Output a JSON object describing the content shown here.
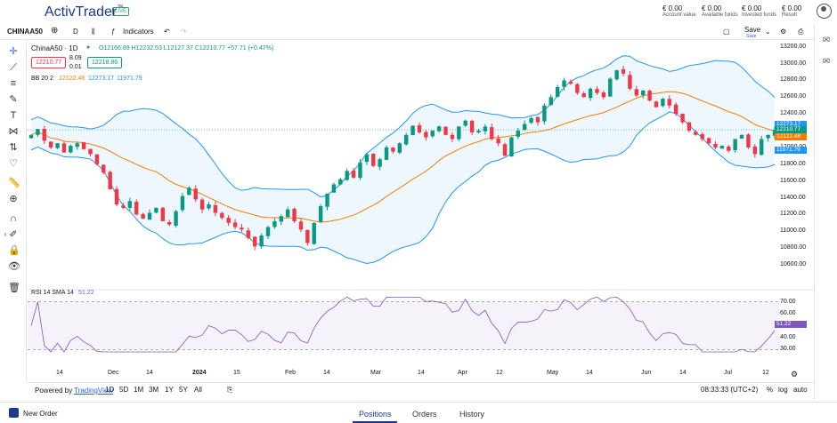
{
  "brand": {
    "name": "ActivTrader",
    "tm": "™",
    "badge": "LIVE"
  },
  "account": [
    {
      "value": "€ 0.00",
      "label": "Account value"
    },
    {
      "value": "€ 0.00",
      "label": "Available funds"
    },
    {
      "value": "€ 0.00",
      "label": "Invested funds"
    },
    {
      "value": "€ 0.00",
      "label": "Result"
    }
  ],
  "toolbar": {
    "symbol": "CHINAA50",
    "interval": "D",
    "indicators": "Indicators",
    "save": "Save",
    "save_sub": "Save"
  },
  "legend": {
    "title": "ChinaA50 · 1D",
    "ohlc": "O12166.89  H12232.53  L12127.37  C12210.77  +57.71 (+0.47%)",
    "sell": "12210.77",
    "spread_top": "8.09",
    "spread_bot": "0.01",
    "buy": "12218.86",
    "bb_label": "BB 20 2",
    "bb_basis": "12122.48",
    "bb_upper": "12273.17",
    "bb_lower": "11971.79",
    "rsi_label": "RSI 14 SMA 14",
    "rsi_value": "51.22"
  },
  "price_axis": [
    "13200.00",
    "13000.00",
    "12800.00",
    "12600.00",
    "12400.00",
    "12200.00",
    "12000.00",
    "11800.00",
    "11600.00",
    "11400.00",
    "11200.00",
    "11000.00",
    "10800.00",
    "10600.00"
  ],
  "price_tags": [
    {
      "value": "12273.17",
      "color": "#2196f3"
    },
    {
      "value": "12210.77",
      "color": "#089981"
    },
    {
      "value": "12122.48",
      "color": "#f57c00"
    },
    {
      "value": "11971.79",
      "color": "#2196f3"
    }
  ],
  "rsi_axis": [
    "70.00",
    "60.00",
    "40.00",
    "30.00"
  ],
  "rsi_tag": "51.22",
  "time_axis": [
    "14",
    "Dec",
    "14",
    "2024",
    "15",
    "Feb",
    "14",
    "Mar",
    "14",
    "Apr",
    "12",
    "May",
    "14",
    "Jun",
    "14",
    "Jul",
    "12"
  ],
  "bottom": {
    "powered": "Powered by",
    "tv": "TradingView",
    "ranges": [
      "1D",
      "5D",
      "1M",
      "3M",
      "1Y",
      "5Y",
      "All"
    ],
    "clock": "08:33:33 (UTC+2)",
    "pct": "%",
    "log": "log",
    "auto": "auto"
  },
  "footer": {
    "new_order": "New Order",
    "tabs": [
      "Positions",
      "Orders",
      "History"
    ]
  },
  "colors": {
    "up": "#089981",
    "down": "#f23645",
    "bb": "#2196f3",
    "basis": "#f57c00",
    "rsi": "#7e57c2"
  },
  "chart_data": {
    "type": "candlestick",
    "ylim": [
      10600,
      13250
    ],
    "closes": [
      12150,
      12220,
      12080,
      12000,
      12050,
      11940,
      12020,
      12050,
      11980,
      11920,
      11800,
      11700,
      11500,
      11320,
      11280,
      11360,
      11200,
      11150,
      11220,
      11280,
      11120,
      11080,
      11240,
      11420,
      11520,
      11380,
      11260,
      11320,
      11220,
      11160,
      11100,
      11050,
      11020,
      10920,
      10820,
      10950,
      11050,
      11120,
      11180,
      11260,
      11120,
      11020,
      10860,
      11100,
      11300,
      11450,
      11560,
      11620,
      11720,
      11640,
      11820,
      11920,
      11780,
      11860,
      12000,
      11950,
      12050,
      12150,
      12260,
      12180,
      12120,
      12200,
      12250,
      12150,
      12100,
      12250,
      12320,
      12180,
      12200,
      12250,
      12100,
      12050,
      11900,
      12120,
      12200,
      12280,
      12350,
      12300,
      12500,
      12600,
      12720,
      12800,
      12760,
      12650,
      12600,
      12700,
      12650,
      12600,
      12820,
      12920,
      12880,
      12700,
      12620,
      12680,
      12560,
      12480,
      12580,
      12500,
      12400,
      12300,
      12200,
      12150,
      12100,
      12050,
      12000,
      12020,
      11960,
      12100,
      12150,
      12000,
      11920,
      12100,
      12150,
      12210
    ]
  }
}
